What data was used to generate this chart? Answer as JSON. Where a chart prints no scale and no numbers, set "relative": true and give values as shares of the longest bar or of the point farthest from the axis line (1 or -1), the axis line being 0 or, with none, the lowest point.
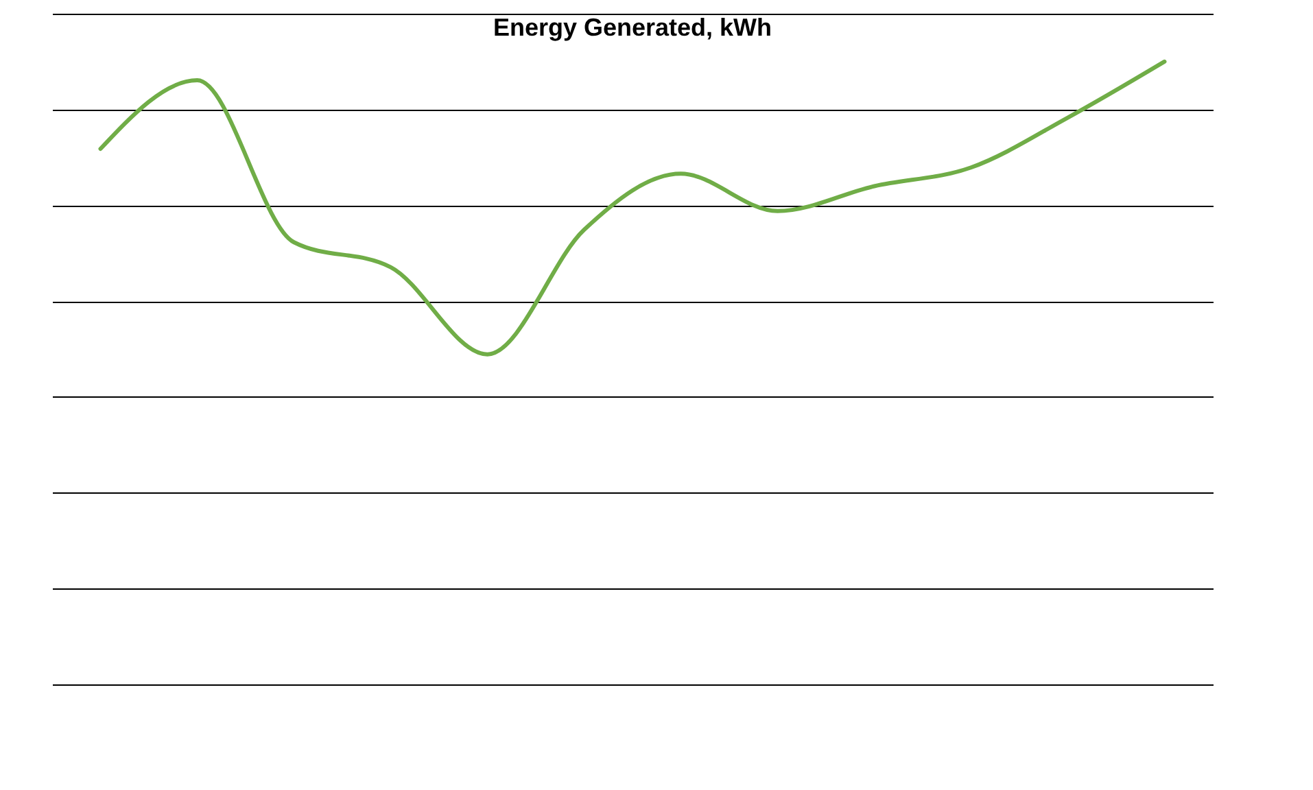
{
  "chart_data": {
    "type": "line",
    "title": "Energy Generated, kWh",
    "relative": true,
    "grid": "y",
    "marker": "none",
    "line_style": "solid",
    "categories": [
      null,
      null,
      null,
      null,
      null,
      null,
      null,
      null,
      null,
      null,
      null,
      null
    ],
    "series": [
      {
        "color": "#70ad47",
        "values": [
          0.86,
          0.97,
          0.71,
          0.67,
          0.53,
          0.73,
          0.82,
          0.76,
          0.8,
          0.83,
          0.91,
          1.0
        ]
      }
    ]
  }
}
